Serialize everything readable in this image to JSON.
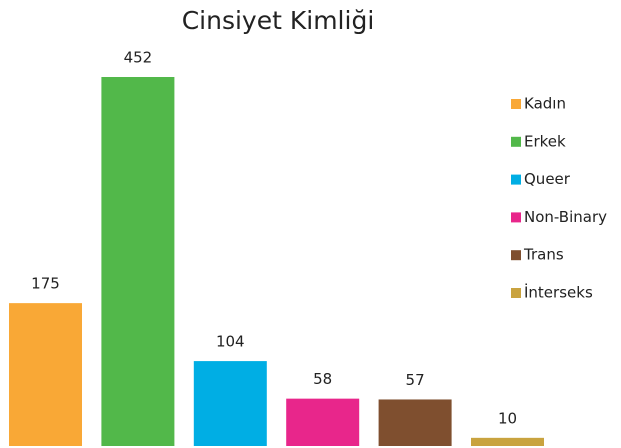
{
  "chart_data": {
    "type": "bar",
    "title": "Cinsiyet Kimliği",
    "categories": [
      "Kadın",
      "Erkek",
      "Queer",
      "Non-Binary",
      "Trans",
      "İnterseks"
    ],
    "values": [
      175,
      452,
      104,
      58,
      57,
      10
    ],
    "colors": [
      "#f9a836",
      "#52b84a",
      "#00aee4",
      "#e8268b",
      "#7f4f2f",
      "#c9a33f"
    ],
    "legend": "right"
  }
}
